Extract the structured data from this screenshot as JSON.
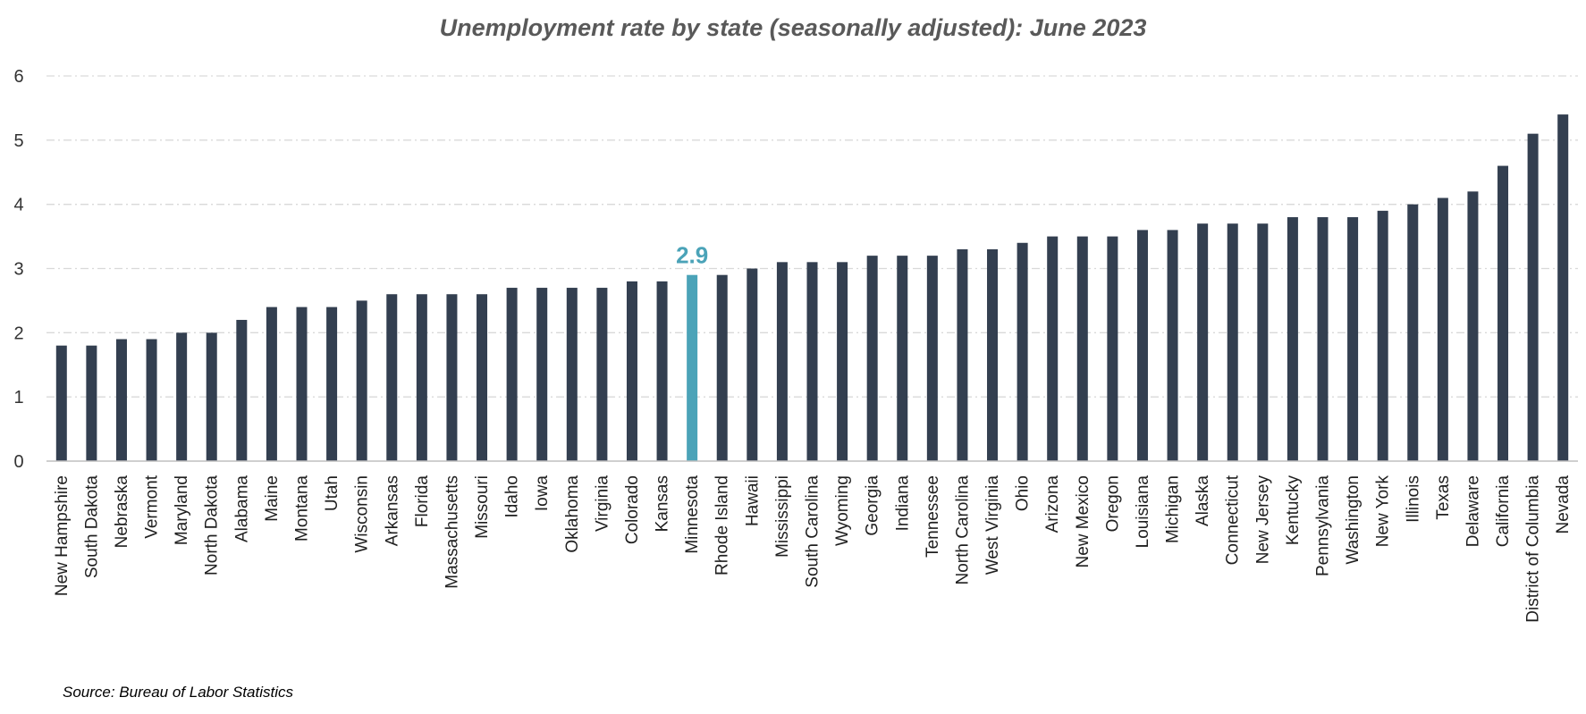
{
  "chart_data": {
    "type": "bar",
    "title": "Unemployment rate by state (seasonally adjusted): June 2023",
    "source": "Source: Bureau of Labor Statistics",
    "xlabel": "",
    "ylabel": "",
    "ylim": [
      0,
      6
    ],
    "yticks": [
      0,
      1,
      2,
      3,
      4,
      5,
      6
    ],
    "grid": true,
    "categories": [
      "New Hampshire",
      "South Dakota",
      "Nebraska",
      "Vermont",
      "Maryland",
      "North Dakota",
      "Alabama",
      "Maine",
      "Montana",
      "Utah",
      "Wisconsin",
      "Arkansas",
      "Florida",
      "Massachusetts",
      "Missouri",
      "Idaho",
      "Iowa",
      "Oklahoma",
      "Virginia",
      "Colorado",
      "Kansas",
      "Minnesota",
      "Rhode Island",
      "Hawaii",
      "Mississippi",
      "South Carolina",
      "Wyoming",
      "Georgia",
      "Indiana",
      "Tennessee",
      "North Carolina",
      "West Virginia",
      "Ohio",
      "Arizona",
      "New Mexico",
      "Oregon",
      "Louisiana",
      "Michigan",
      "Alaska",
      "Connecticut",
      "New Jersey",
      "Kentucky",
      "Pennsylvania",
      "Washington",
      "New York",
      "Illinois",
      "Texas",
      "Delaware",
      "California",
      "District of Columbia",
      "Nevada"
    ],
    "values": [
      1.8,
      1.8,
      1.9,
      1.9,
      2.0,
      2.0,
      2.2,
      2.4,
      2.4,
      2.4,
      2.5,
      2.6,
      2.6,
      2.6,
      2.6,
      2.7,
      2.7,
      2.7,
      2.7,
      2.8,
      2.8,
      2.9,
      2.9,
      3.0,
      3.1,
      3.1,
      3.1,
      3.2,
      3.2,
      3.2,
      3.3,
      3.3,
      3.4,
      3.5,
      3.5,
      3.5,
      3.6,
      3.6,
      3.7,
      3.7,
      3.7,
      3.8,
      3.8,
      3.8,
      3.9,
      4.0,
      4.1,
      4.2,
      4.6,
      5.1,
      5.4
    ],
    "highlight": {
      "category": "Minnesota",
      "label": "2.9",
      "color": "#4ba3b8"
    },
    "bar_color": "#333f50",
    "grid_color": "#d9d9d9"
  }
}
